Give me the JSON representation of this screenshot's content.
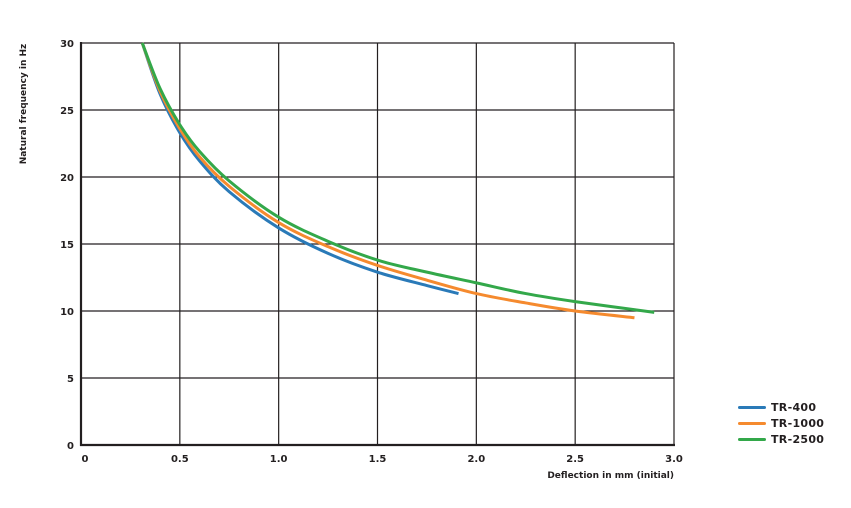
{
  "chart_data": {
    "type": "line",
    "title": "",
    "xlabel": "Deflection in mm (initial)",
    "ylabel": "Natural frequency in Hz",
    "xlim": [
      0,
      3.0
    ],
    "ylim": [
      0,
      30
    ],
    "x_ticks": [
      "0",
      "0.5",
      "1.0",
      "1.5",
      "2.0",
      "2.5",
      "3.0"
    ],
    "y_ticks": [
      "0",
      "5",
      "10",
      "15",
      "20",
      "25",
      "30"
    ],
    "grid": true,
    "legend_position": "right-bottom",
    "series": [
      {
        "name": "TR-400",
        "color": "#2a7ab8",
        "x": [
          0.31,
          0.4,
          0.5,
          0.6,
          0.75,
          1.0,
          1.25,
          1.5,
          1.75,
          1.91
        ],
        "y": [
          30.0,
          26.2,
          23.3,
          21.2,
          18.9,
          16.2,
          14.3,
          12.9,
          11.9,
          11.3
        ]
      },
      {
        "name": "TR-1000",
        "color": "#f58a2e",
        "x": [
          0.31,
          0.4,
          0.5,
          0.6,
          0.75,
          1.0,
          1.25,
          1.5,
          1.75,
          2.0,
          2.25,
          2.5,
          2.8
        ],
        "y": [
          30.0,
          26.4,
          23.6,
          21.5,
          19.3,
          16.6,
          14.8,
          13.4,
          12.3,
          11.3,
          10.6,
          10.0,
          9.5
        ]
      },
      {
        "name": "TR-2500",
        "color": "#33a84a",
        "x": [
          0.31,
          0.4,
          0.5,
          0.6,
          0.75,
          1.0,
          1.25,
          1.5,
          1.75,
          2.0,
          2.25,
          2.5,
          2.9
        ],
        "y": [
          30.0,
          26.6,
          23.9,
          21.9,
          19.7,
          17.0,
          15.2,
          13.8,
          12.9,
          12.1,
          11.3,
          10.7,
          9.9
        ]
      }
    ]
  },
  "legend": {
    "items": [
      {
        "label": "TR-400",
        "color": "#2a7ab8"
      },
      {
        "label": "TR-1000",
        "color": "#f58a2e"
      },
      {
        "label": "TR-2500",
        "color": "#33a84a"
      }
    ]
  }
}
